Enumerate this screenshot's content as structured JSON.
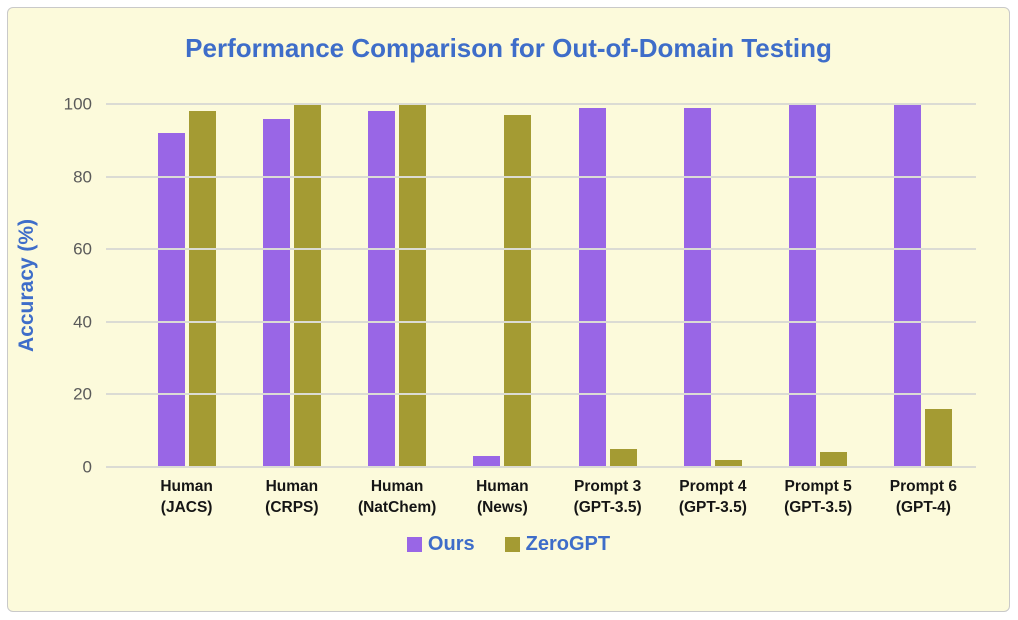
{
  "title": "Performance Comparison for Out-of-Domain Testing",
  "colors": {
    "panel_background": "#FCFADB",
    "panel_border": "#C9C9C9",
    "title_text": "#3E6DC9",
    "axis_tick_text": "#5A5A5A",
    "gridline": "#DBDBD4",
    "x_label_text": "#151515",
    "ours": "#9966E6",
    "zerogpt": "#A49B33"
  },
  "chart_data": {
    "type": "bar",
    "title": "Performance Comparison for Out-of-Domain Testing",
    "xlabel": "",
    "ylabel": "Accuracy (%)",
    "ylim": [
      0,
      100
    ],
    "yticks": [
      0,
      20,
      40,
      60,
      80,
      100
    ],
    "grid": true,
    "legend_position": "bottom",
    "categories": [
      [
        "Human",
        "(JACS)"
      ],
      [
        "Human",
        "(CRPS)"
      ],
      [
        "Human",
        "(NatChem)"
      ],
      [
        "Human",
        "(News)"
      ],
      [
        "Prompt 3",
        "(GPT-3.5)"
      ],
      [
        "Prompt 4",
        "(GPT-3.5)"
      ],
      [
        "Prompt 5",
        "(GPT-3.5)"
      ],
      [
        "Prompt 6",
        "(GPT-4)"
      ]
    ],
    "series": [
      {
        "name": "Ours",
        "color": "#9966E6",
        "values": [
          92,
          96,
          98,
          3,
          99,
          99,
          100,
          100
        ]
      },
      {
        "name": "ZeroGPT",
        "color": "#A49B33",
        "values": [
          98,
          100,
          100,
          97,
          5,
          2,
          4,
          16
        ]
      }
    ]
  }
}
